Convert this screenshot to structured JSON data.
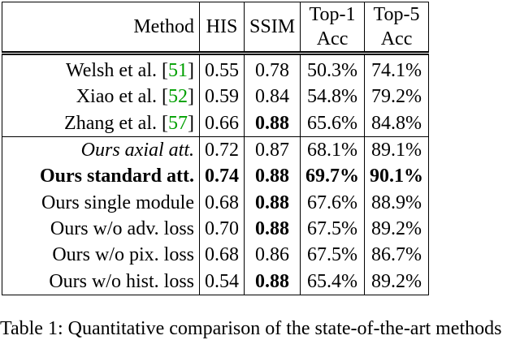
{
  "table": {
    "header": [
      "Method",
      "HIS",
      "SSIM",
      "Top-1\nAcc",
      "Top-5\nAcc"
    ],
    "groups": [
      [
        {
          "method": "Welsh et al.",
          "ref": "51",
          "cells": [
            "0.55",
            "0.78",
            "50.3%",
            "74.1%"
          ]
        },
        {
          "method": "Xiao et al.",
          "ref": "52",
          "cells": [
            "0.59",
            "0.84",
            "54.8%",
            "79.2%"
          ]
        },
        {
          "method": "Zhang et al.",
          "ref": "57",
          "cells": [
            "0.66",
            "0.88",
            "65.6%",
            "84.8%"
          ],
          "bold": [
            1
          ]
        }
      ],
      [
        {
          "method": "Ours axial att.",
          "method_style": "italic",
          "cells": [
            "0.72",
            "0.87",
            "68.1%",
            "89.1%"
          ]
        },
        {
          "method": "Ours standard att.",
          "method_style": "bold",
          "cells": [
            "0.74",
            "0.88",
            "69.7%",
            "90.1%"
          ],
          "bold": [
            0,
            1,
            2,
            3
          ]
        },
        {
          "method": "Ours single module",
          "cells": [
            "0.68",
            "0.88",
            "67.6%",
            "88.9%"
          ],
          "bold": [
            1
          ]
        },
        {
          "method": "Ours w/o adv. loss",
          "cells": [
            "0.70",
            "0.88",
            "67.5%",
            "89.2%"
          ],
          "bold": [
            1
          ]
        },
        {
          "method": "Ours w/o pix. loss",
          "cells": [
            "0.68",
            "0.86",
            "67.5%",
            "86.7%"
          ]
        },
        {
          "method": "Ours w/o hist. loss",
          "cells": [
            "0.54",
            "0.88",
            "65.4%",
            "89.2%"
          ],
          "bold": [
            1
          ]
        }
      ]
    ]
  },
  "caption": "Table 1: Quantitative comparison of the state-of-the-art methods"
}
